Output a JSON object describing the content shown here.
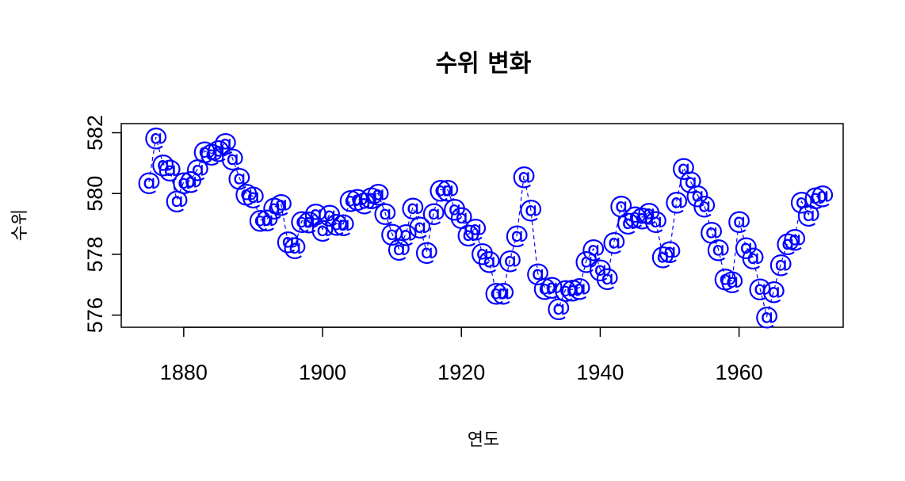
{
  "chart_data": {
    "type": "line",
    "title": "수위 변화",
    "xlabel": "연도",
    "ylabel": "수위",
    "point_symbol": "@",
    "color": "#0000ff",
    "line_style": "dashed",
    "xlim": [
      1871,
      1975
    ],
    "ylim": [
      575.6,
      582.3
    ],
    "x_ticks": [
      1880,
      1900,
      1920,
      1940,
      1960
    ],
    "y_ticks": [
      576,
      578,
      580,
      582
    ],
    "grid": false,
    "legend": "none",
    "series": [
      {
        "x": [
          1875,
          1876,
          1877,
          1878,
          1879,
          1880,
          1881,
          1882,
          1883,
          1884,
          1885,
          1886,
          1887,
          1888,
          1889,
          1890,
          1891,
          1892,
          1893,
          1894,
          1895,
          1896,
          1897,
          1898,
          1899,
          1900,
          1901,
          1902,
          1903,
          1904,
          1905,
          1906,
          1907,
          1908,
          1909,
          1910,
          1911,
          1912,
          1913,
          1914,
          1915,
          1916,
          1917,
          1918,
          1919,
          1920,
          1921,
          1922,
          1923,
          1924,
          1925,
          1926,
          1927,
          1928,
          1929,
          1930,
          1931,
          1932,
          1933,
          1934,
          1935,
          1936,
          1937,
          1938,
          1939,
          1940,
          1941,
          1942,
          1943,
          1944,
          1945,
          1946,
          1947,
          1948,
          1949,
          1950,
          1951,
          1952,
          1953,
          1954,
          1955,
          1956,
          1957,
          1958,
          1959,
          1960,
          1961,
          1962,
          1963,
          1964,
          1965,
          1966,
          1967,
          1968,
          1969,
          1970,
          1971,
          1972
        ],
        "y": [
          580.38,
          581.86,
          580.97,
          580.8,
          579.79,
          580.39,
          580.42,
          580.82,
          581.4,
          581.32,
          581.44,
          581.68,
          581.17,
          580.53,
          580.01,
          579.91,
          579.14,
          579.16,
          579.55,
          579.67,
          578.44,
          578.24,
          579.1,
          579.09,
          579.35,
          578.82,
          579.32,
          579.01,
          579,
          579.8,
          579.83,
          579.72,
          579.89,
          580.01,
          579.37,
          578.69,
          578.19,
          578.67,
          579.55,
          578.92,
          578.09,
          579.37,
          580.13,
          580.14,
          579.51,
          579.24,
          578.66,
          578.86,
          578.05,
          577.79,
          576.75,
          576.75,
          577.82,
          578.64,
          580.58,
          579.48,
          577.38,
          576.9,
          576.94,
          576.24,
          576.84,
          576.85,
          576.9,
          577.79,
          578.18,
          577.51,
          577.23,
          578.42,
          579.61,
          579.05,
          579.26,
          579.22,
          579.38,
          579.1,
          577.95,
          578.12,
          579.75,
          580.85,
          580.41,
          579.96,
          579.61,
          578.76,
          578.18,
          577.21,
          577.13,
          579.1,
          578.25,
          577.91,
          576.89,
          575.96,
          576.8,
          577.68,
          578.38,
          578.52,
          579.74,
          579.31,
          579.89,
          579.96
        ]
      }
    ]
  }
}
